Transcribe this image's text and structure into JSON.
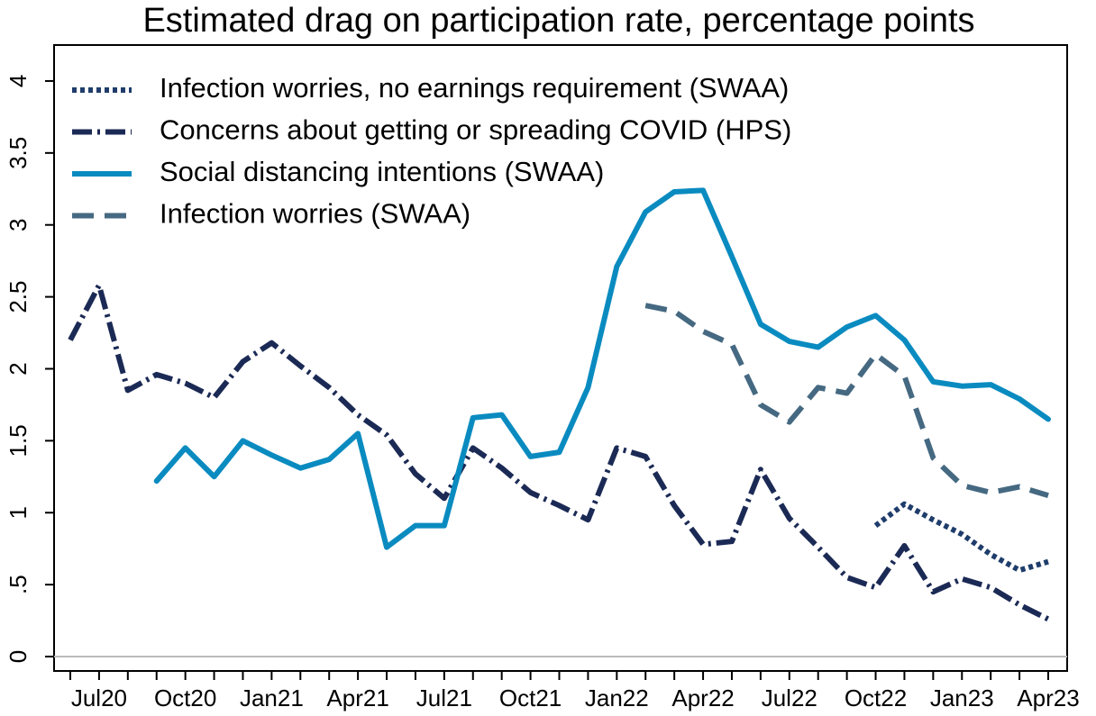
{
  "chart_data": {
    "type": "line",
    "title": "Estimated drag on participation rate, percentage points",
    "categories": [
      null,
      "Jul20",
      null,
      null,
      "Oct20",
      null,
      null,
      "Jan21",
      null,
      null,
      "Apr21",
      null,
      null,
      "Jul21",
      null,
      null,
      "Oct21",
      null,
      null,
      "Jan22",
      null,
      null,
      "Apr22",
      null,
      null,
      "Jul22",
      null,
      null,
      "Oct22",
      null,
      null,
      "Jan23",
      null,
      null,
      "Apr23"
    ],
    "series": [
      {
        "name": "Infection worries, no earnings requirement (SWAA)",
        "color": "#1f3d6b",
        "dash": "dotted",
        "values": [
          null,
          null,
          null,
          null,
          null,
          null,
          null,
          null,
          null,
          null,
          null,
          null,
          null,
          null,
          null,
          null,
          null,
          null,
          null,
          null,
          null,
          null,
          null,
          null,
          null,
          null,
          null,
          null,
          0.91,
          1.06,
          0.95,
          0.85,
          0.71,
          0.6,
          0.66
        ]
      },
      {
        "name": "Concerns about getting or spreading COVID (HPS)",
        "color": "#1b2a55",
        "dash": "dashdot",
        "values": [
          2.2,
          2.58,
          1.85,
          1.96,
          1.9,
          1.8,
          2.05,
          2.18,
          2.02,
          1.87,
          1.68,
          1.54,
          1.27,
          1.1,
          1.45,
          1.31,
          1.14,
          1.05,
          0.95,
          1.45,
          1.39,
          1.05,
          0.78,
          0.8,
          1.3,
          0.96,
          0.76,
          0.55,
          0.48,
          0.77,
          0.45,
          0.54,
          0.48,
          0.36,
          0.26
        ]
      },
      {
        "name": "Social distancing intentions (SWAA)",
        "color": "#0a8bc0",
        "dash": "solid",
        "values": [
          null,
          null,
          null,
          1.22,
          1.45,
          1.25,
          1.5,
          1.4,
          1.31,
          1.37,
          1.55,
          0.76,
          0.91,
          0.91,
          1.66,
          1.68,
          1.39,
          1.42,
          1.87,
          2.71,
          3.09,
          3.23,
          3.24,
          2.78,
          2.31,
          2.19,
          2.15,
          2.29,
          2.37,
          2.2,
          1.91,
          1.88,
          1.89,
          1.79,
          1.65
        ]
      },
      {
        "name": "Infection worries (SWAA)",
        "color": "#466982",
        "dash": "dashed",
        "values": [
          null,
          null,
          null,
          null,
          null,
          null,
          null,
          null,
          null,
          null,
          null,
          null,
          null,
          null,
          null,
          null,
          null,
          null,
          null,
          null,
          2.44,
          2.4,
          2.26,
          2.17,
          1.75,
          1.63,
          1.87,
          1.83,
          2.1,
          1.95,
          1.38,
          1.19,
          1.14,
          1.18,
          1.12
        ]
      }
    ],
    "ylim": [
      -0.1,
      4.25
    ],
    "yticks": [
      0,
      {
        "value": 0.5,
        "label": ".5"
      },
      1,
      1.5,
      2,
      2.5,
      3,
      3.5,
      4
    ],
    "legend": "top-left"
  }
}
